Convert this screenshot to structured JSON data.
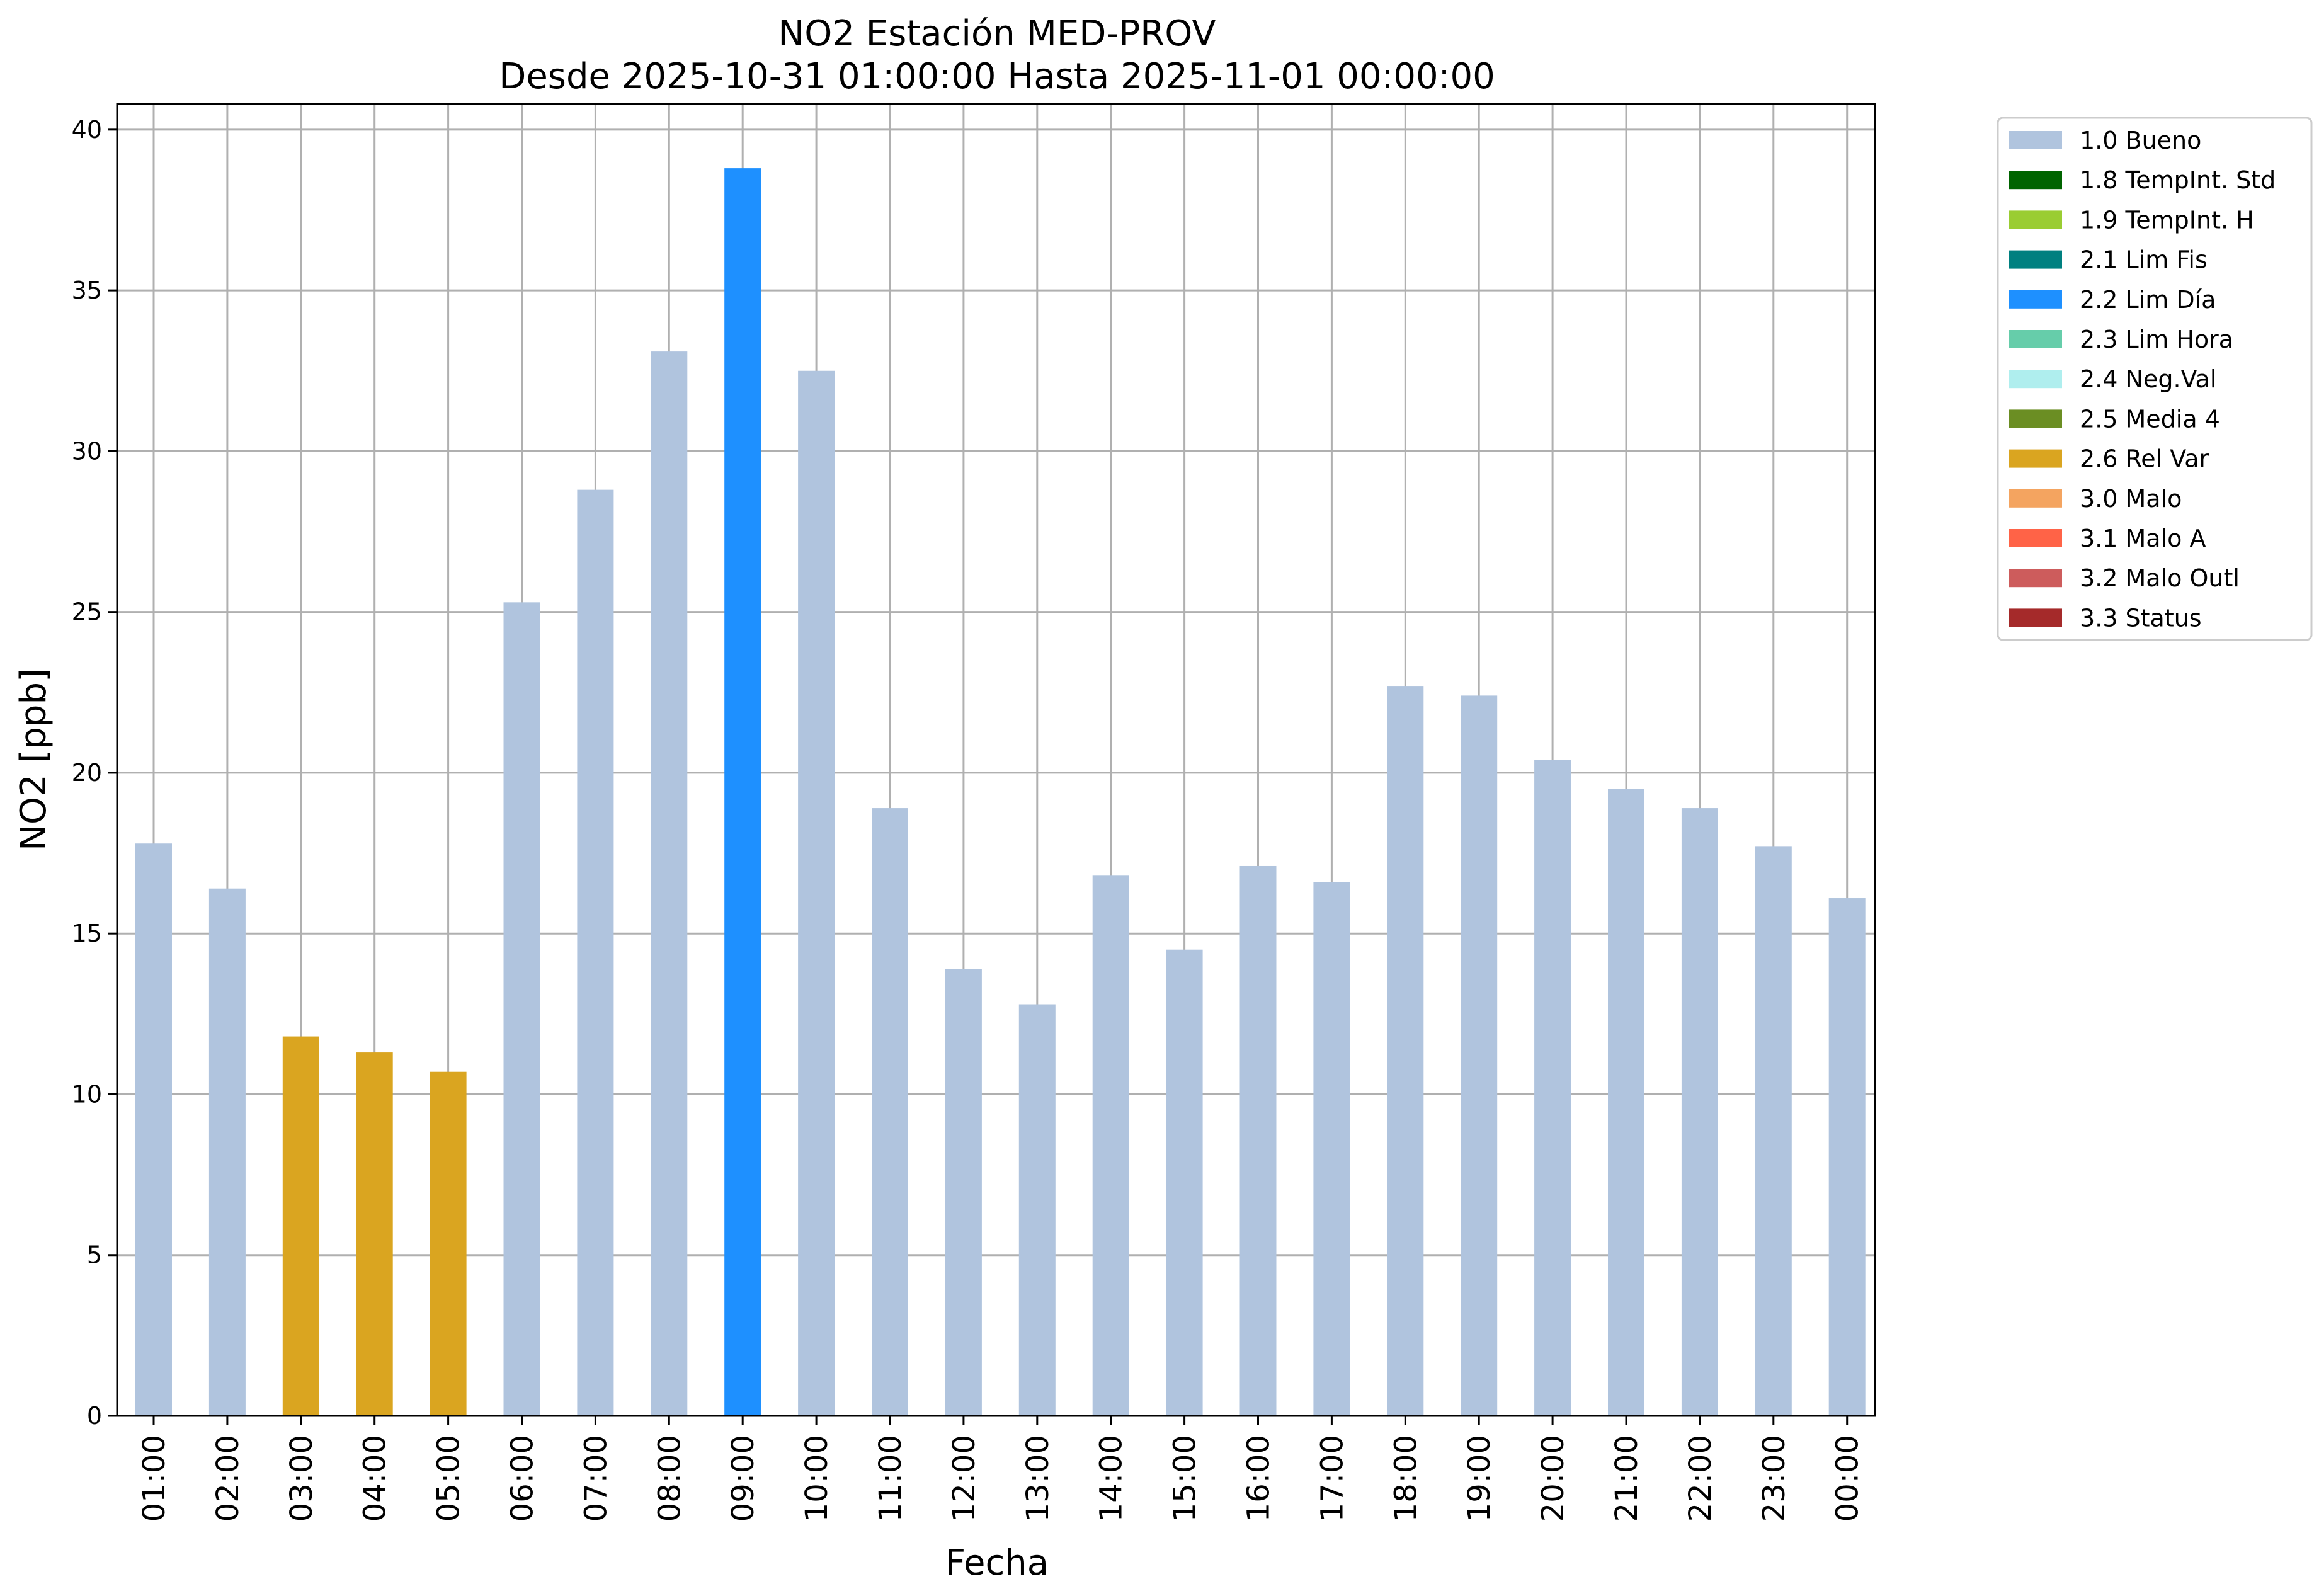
{
  "chart_data": {
    "type": "bar",
    "title": "NO2 Estación MED-PROV",
    "subtitle": "Desde 2025-10-31 01:00:00 Hasta 2025-11-01 00:00:00",
    "xlabel": "Fecha",
    "ylabel": "NO2 [ppb]",
    "ylim": [
      0,
      40.8
    ],
    "yticks": [
      0,
      5,
      10,
      15,
      20,
      25,
      30,
      35,
      40
    ],
    "grid": true,
    "legend_position": "outside-top-right",
    "categories": [
      "01:00",
      "02:00",
      "03:00",
      "04:00",
      "05:00",
      "06:00",
      "07:00",
      "08:00",
      "09:00",
      "10:00",
      "11:00",
      "12:00",
      "13:00",
      "14:00",
      "15:00",
      "16:00",
      "17:00",
      "18:00",
      "19:00",
      "20:00",
      "21:00",
      "22:00",
      "23:00",
      "00:00"
    ],
    "values": [
      17.8,
      16.4,
      11.8,
      11.3,
      10.7,
      25.3,
      28.8,
      33.1,
      38.8,
      32.5,
      18.9,
      13.9,
      12.8,
      16.8,
      14.5,
      17.1,
      16.6,
      22.7,
      22.4,
      20.4,
      19.5,
      18.9,
      17.7,
      16.1
    ],
    "flags": [
      "1.0 Bueno",
      "1.0 Bueno",
      "2.6 Rel Var",
      "2.6 Rel Var",
      "2.6 Rel Var",
      "1.0 Bueno",
      "1.0 Bueno",
      "1.0 Bueno",
      "2.2 Lim Día",
      "1.0 Bueno",
      "1.0 Bueno",
      "1.0 Bueno",
      "1.0 Bueno",
      "1.0 Bueno",
      "1.0 Bueno",
      "1.0 Bueno",
      "1.0 Bueno",
      "1.0 Bueno",
      "1.0 Bueno",
      "1.0 Bueno",
      "1.0 Bueno",
      "1.0 Bueno",
      "1.0 Bueno",
      "1.0 Bueno"
    ],
    "legend": [
      {
        "label": "1.0 Bueno",
        "color": "#b0c4de"
      },
      {
        "label": "1.8 TempInt. Std",
        "color": "#006400"
      },
      {
        "label": "1.9 TempInt. H",
        "color": "#9acd32"
      },
      {
        "label": "2.1 Lim Fis",
        "color": "#008080"
      },
      {
        "label": "2.2 Lim Día",
        "color": "#1e90ff"
      },
      {
        "label": "2.3 Lim Hora",
        "color": "#66cdaa"
      },
      {
        "label": "2.4 Neg.Val",
        "color": "#afeeee"
      },
      {
        "label": "2.5 Media 4",
        "color": "#6b8e23"
      },
      {
        "label": "2.6 Rel Var",
        "color": "#daa520"
      },
      {
        "label": "3.0 Malo",
        "color": "#f4a460"
      },
      {
        "label": "3.1 Malo A",
        "color": "#ff6347"
      },
      {
        "label": "3.2 Malo Outl",
        "color": "#cd5c5c"
      },
      {
        "label": "3.3 Status",
        "color": "#a52a2a"
      }
    ]
  }
}
